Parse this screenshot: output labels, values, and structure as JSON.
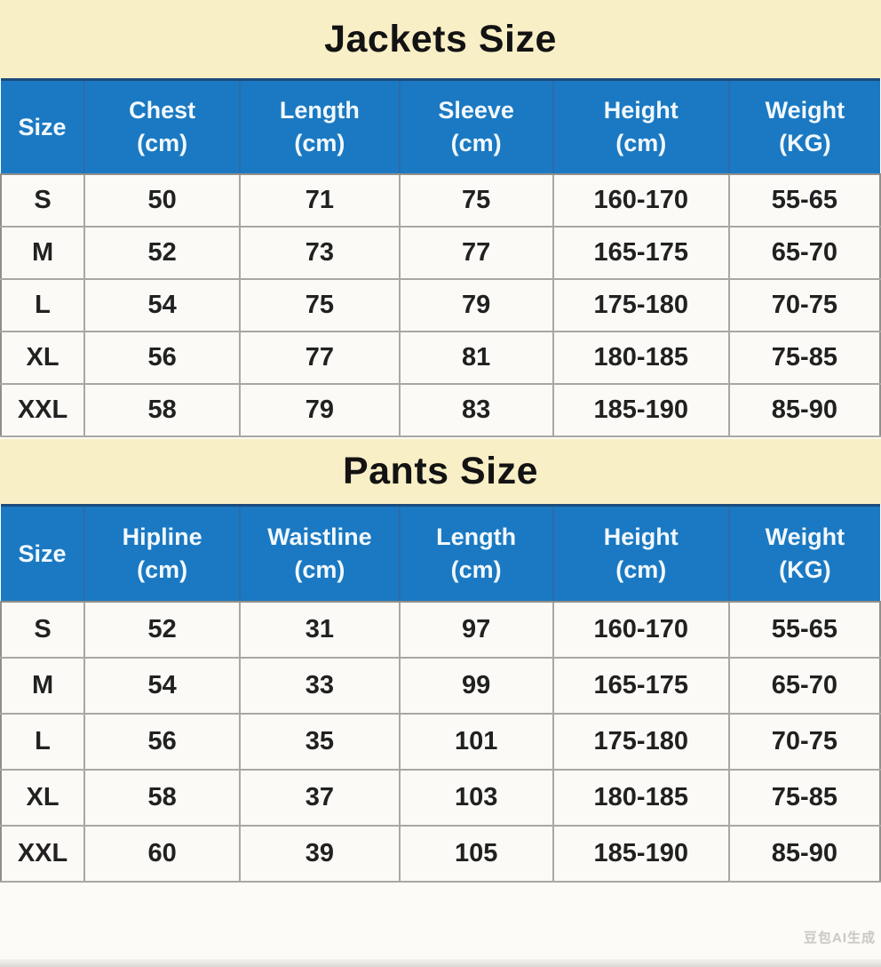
{
  "colors": {
    "banner_bg": "#f9efc6",
    "header_blue": "#1a79c2",
    "header_top_border": "#1c4b7d",
    "body_text": "#212121",
    "grid_line": "#a8a7a4"
  },
  "watermark": "豆包AI生成",
  "chart_data": [
    {
      "type": "table",
      "title": "Jackets Size",
      "columns": [
        "Size",
        "Chest (cm)",
        "Length (cm)",
        "Sleeve (cm)",
        "Height (cm)",
        "Weight (KG)"
      ],
      "rows": [
        [
          "S",
          "50",
          "71",
          "75",
          "160-170",
          "55-65"
        ],
        [
          "M",
          "52",
          "73",
          "77",
          "165-175",
          "65-70"
        ],
        [
          "L",
          "54",
          "75",
          "79",
          "175-180",
          "70-75"
        ],
        [
          "XL",
          "56",
          "77",
          "81",
          "180-185",
          "75-85"
        ],
        [
          "XXL",
          "58",
          "79",
          "83",
          "185-190",
          "85-90"
        ]
      ]
    },
    {
      "type": "table",
      "title": "Pants Size",
      "columns": [
        "Size",
        "Hipline (cm)",
        "Waistline (cm)",
        "Length (cm)",
        "Height (cm)",
        "Weight (KG)"
      ],
      "rows": [
        [
          "S",
          "52",
          "31",
          "97",
          "160-170",
          "55-65"
        ],
        [
          "M",
          "54",
          "33",
          "99",
          "165-175",
          "65-70"
        ],
        [
          "L",
          "56",
          "35",
          "101",
          "175-180",
          "70-75"
        ],
        [
          "XL",
          "58",
          "37",
          "103",
          "180-185",
          "75-85"
        ],
        [
          "XXL",
          "60",
          "39",
          "105",
          "185-190",
          "85-90"
        ]
      ]
    }
  ]
}
